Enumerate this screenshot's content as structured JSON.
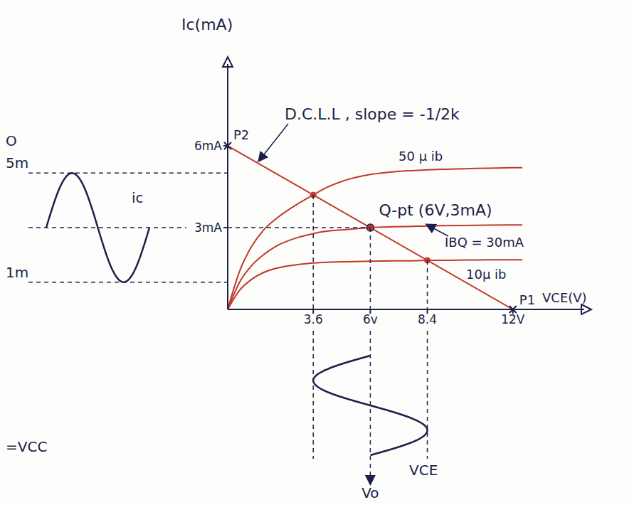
{
  "chart_data": {
    "type": "line",
    "x_label": "VCE(V)",
    "y_label": "Ic(mA)",
    "xlim": [
      0,
      15
    ],
    "ylim": [
      0,
      9
    ],
    "xticks": [
      3.6,
      {
        "value": 6,
        "label": "6v"
      },
      8.4,
      {
        "value": 12,
        "label": "12V"
      }
    ],
    "yticks": [
      {
        "value": 3,
        "label": "3mA"
      },
      {
        "value": 6,
        "label": "6mA"
      }
    ],
    "grid": false,
    "series": [
      {
        "name": "D.C.L.L , slope = -1/2k",
        "color": "#c0392b",
        "x": [
          0,
          12
        ],
        "values": [
          6,
          0
        ]
      },
      {
        "name": "50 μ ib",
        "color": "#c0392b",
        "x": [
          0,
          0.5,
          1,
          1.5,
          2,
          3,
          3.6,
          4,
          5,
          6,
          7,
          8,
          8.4,
          9,
          10,
          11,
          12.4
        ],
        "values": [
          0,
          1.4,
          2.3,
          2.9,
          3.3,
          3.9,
          4.2,
          4.4,
          4.75,
          4.95,
          5.05,
          5.1,
          5.12,
          5.14,
          5.16,
          5.18,
          5.2
        ]
      },
      {
        "name": "IBQ = 30mA",
        "color": "#c0392b",
        "x": [
          0,
          0.5,
          1,
          1.5,
          2,
          3,
          3.6,
          4,
          5,
          6,
          7,
          8,
          8.4,
          9,
          10,
          11,
          12.4
        ],
        "values": [
          0,
          1.0,
          1.6,
          2.0,
          2.3,
          2.65,
          2.78,
          2.85,
          2.93,
          3.0,
          3.03,
          3.05,
          3.06,
          3.07,
          3.08,
          3.09,
          3.1
        ]
      },
      {
        "name": "10μ ib",
        "color": "#c0392b",
        "x": [
          0,
          0.5,
          1,
          1.5,
          2,
          3,
          3.6,
          4,
          5,
          6,
          7,
          8,
          8.4,
          9,
          10,
          11,
          12.4
        ],
        "values": [
          0,
          0.7,
          1.1,
          1.35,
          1.5,
          1.65,
          1.7,
          1.72,
          1.75,
          1.77,
          1.78,
          1.79,
          1.8,
          1.8,
          1.81,
          1.82,
          1.82
        ]
      }
    ],
    "annotations": [
      {
        "text": "Q-pt (6V,3mA)",
        "x": 6,
        "y": 3,
        "marker": "dot"
      },
      {
        "text": "P2",
        "x": 0,
        "y": 6,
        "marker": "x"
      },
      {
        "text": "P1",
        "x": 12,
        "y": 0,
        "marker": "x"
      }
    ],
    "marked_points": [
      {
        "x": 3.6,
        "y": 4.2
      },
      {
        "x": 8.4,
        "y": 1.8
      }
    ],
    "input_signal": {
      "name": "ic",
      "center": 3,
      "levels": [
        {
          "value": 5,
          "label": "5m"
        },
        {
          "value": 1,
          "label": "1m"
        }
      ]
    },
    "output_signal": {
      "name": "VCE",
      "output_label": "Vo",
      "min": 3.6,
      "center": 6,
      "max": 8.4
    },
    "notes": [
      "O",
      "=VCC"
    ]
  }
}
